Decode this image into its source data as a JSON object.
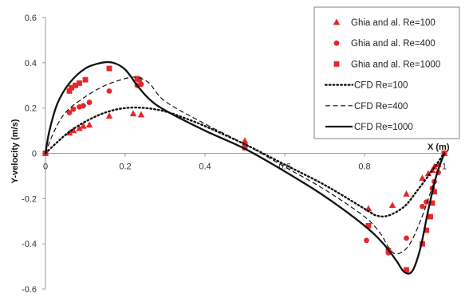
{
  "chart_data": {
    "type": "scatter",
    "title": "",
    "xlabel": "X (m)",
    "ylabel": "Y-velocity (m/s)",
    "xlim": [
      0,
      1
    ],
    "ylim": [
      -0.6,
      0.6
    ],
    "x_ticks": [
      "0",
      "0.2",
      "0.4",
      "0.6",
      "0.8",
      "1"
    ],
    "y_ticks": [
      "-0.6",
      "-0.4",
      "-0.2",
      "0",
      "0.2",
      "0.4",
      "0.6"
    ],
    "grid": "none",
    "legend_position": "top-right",
    "series": [
      {
        "name": "Ghia and al. Re=100",
        "kind": "markers",
        "marker": "triangle",
        "color": "#e8262a",
        "x": [
          0.0,
          0.06,
          0.07,
          0.085,
          0.095,
          0.11,
          0.16,
          0.22,
          0.24,
          0.5,
          0.81,
          0.87,
          0.905,
          0.945,
          0.96,
          0.97,
          0.975,
          0.985,
          1.0
        ],
        "y": [
          0.0,
          0.09,
          0.1,
          0.11,
          0.12,
          0.125,
          0.165,
          0.175,
          0.17,
          0.055,
          -0.245,
          -0.23,
          -0.18,
          -0.11,
          -0.09,
          -0.075,
          -0.06,
          -0.05,
          0.0
        ]
      },
      {
        "name": "Ghia and al. Re=400",
        "kind": "markers",
        "marker": "circle",
        "color": "#e8262a",
        "x": [
          0.0,
          0.06,
          0.07,
          0.085,
          0.095,
          0.11,
          0.16,
          0.23,
          0.24,
          0.5,
          0.805,
          0.86,
          0.905,
          0.945,
          0.955,
          0.97,
          0.975,
          0.985,
          1.0
        ],
        "y": [
          0.0,
          0.18,
          0.195,
          0.205,
          0.21,
          0.225,
          0.275,
          0.3,
          0.305,
          0.04,
          -0.385,
          -0.44,
          -0.375,
          -0.235,
          -0.215,
          -0.155,
          -0.125,
          -0.085,
          0.0
        ]
      },
      {
        "name": "Ghia and al. Re=1000",
        "kind": "markers",
        "marker": "square",
        "color": "#e8262a",
        "x": [
          0.0,
          0.06,
          0.065,
          0.075,
          0.085,
          0.1,
          0.16,
          0.23,
          0.235,
          0.5,
          0.81,
          0.86,
          0.905,
          0.945,
          0.955,
          0.965,
          0.97,
          0.975,
          1.0
        ],
        "y": [
          0.0,
          0.275,
          0.29,
          0.3,
          0.31,
          0.325,
          0.375,
          0.33,
          0.325,
          0.025,
          -0.32,
          -0.43,
          -0.515,
          -0.4,
          -0.34,
          -0.28,
          -0.22,
          -0.17,
          0.0
        ]
      },
      {
        "name": "CFD Re=100",
        "kind": "line",
        "style": "dotted",
        "color": "#111111",
        "x": [
          0.0,
          0.03,
          0.06,
          0.1,
          0.15,
          0.2,
          0.25,
          0.3,
          0.35,
          0.4,
          0.5,
          0.6,
          0.7,
          0.8,
          0.83,
          0.86,
          0.9,
          0.93,
          0.96,
          0.98,
          1.0
        ],
        "y": [
          0.0,
          0.05,
          0.095,
          0.14,
          0.18,
          0.2,
          0.2,
          0.185,
          0.155,
          0.12,
          0.04,
          -0.05,
          -0.14,
          -0.245,
          -0.275,
          -0.275,
          -0.235,
          -0.17,
          -0.1,
          -0.05,
          0.0
        ]
      },
      {
        "name": "CFD Re=400",
        "kind": "line",
        "style": "dashed",
        "color": "#111111",
        "x": [
          0.0,
          0.02,
          0.05,
          0.1,
          0.15,
          0.2,
          0.23,
          0.26,
          0.3,
          0.4,
          0.5,
          0.6,
          0.7,
          0.8,
          0.84,
          0.86,
          0.88,
          0.91,
          0.94,
          0.97,
          1.0
        ],
        "y": [
          0.0,
          0.09,
          0.18,
          0.25,
          0.3,
          0.33,
          0.335,
          0.31,
          0.23,
          0.13,
          0.04,
          -0.06,
          -0.16,
          -0.28,
          -0.355,
          -0.415,
          -0.445,
          -0.41,
          -0.3,
          -0.15,
          0.0
        ]
      },
      {
        "name": "CFD Re=1000",
        "kind": "line",
        "style": "solid",
        "color": "#111111",
        "x": [
          0.0,
          0.01,
          0.03,
          0.06,
          0.1,
          0.14,
          0.17,
          0.2,
          0.23,
          0.26,
          0.3,
          0.4,
          0.5,
          0.6,
          0.7,
          0.8,
          0.85,
          0.88,
          0.9,
          0.92,
          0.94,
          0.96,
          0.98,
          1.0
        ],
        "y": [
          0.0,
          0.1,
          0.22,
          0.31,
          0.375,
          0.4,
          0.4,
          0.37,
          0.3,
          0.24,
          0.19,
          0.1,
          0.02,
          -0.08,
          -0.19,
          -0.32,
          -0.405,
          -0.475,
          -0.525,
          -0.52,
          -0.42,
          -0.25,
          -0.1,
          0.0
        ]
      }
    ]
  }
}
